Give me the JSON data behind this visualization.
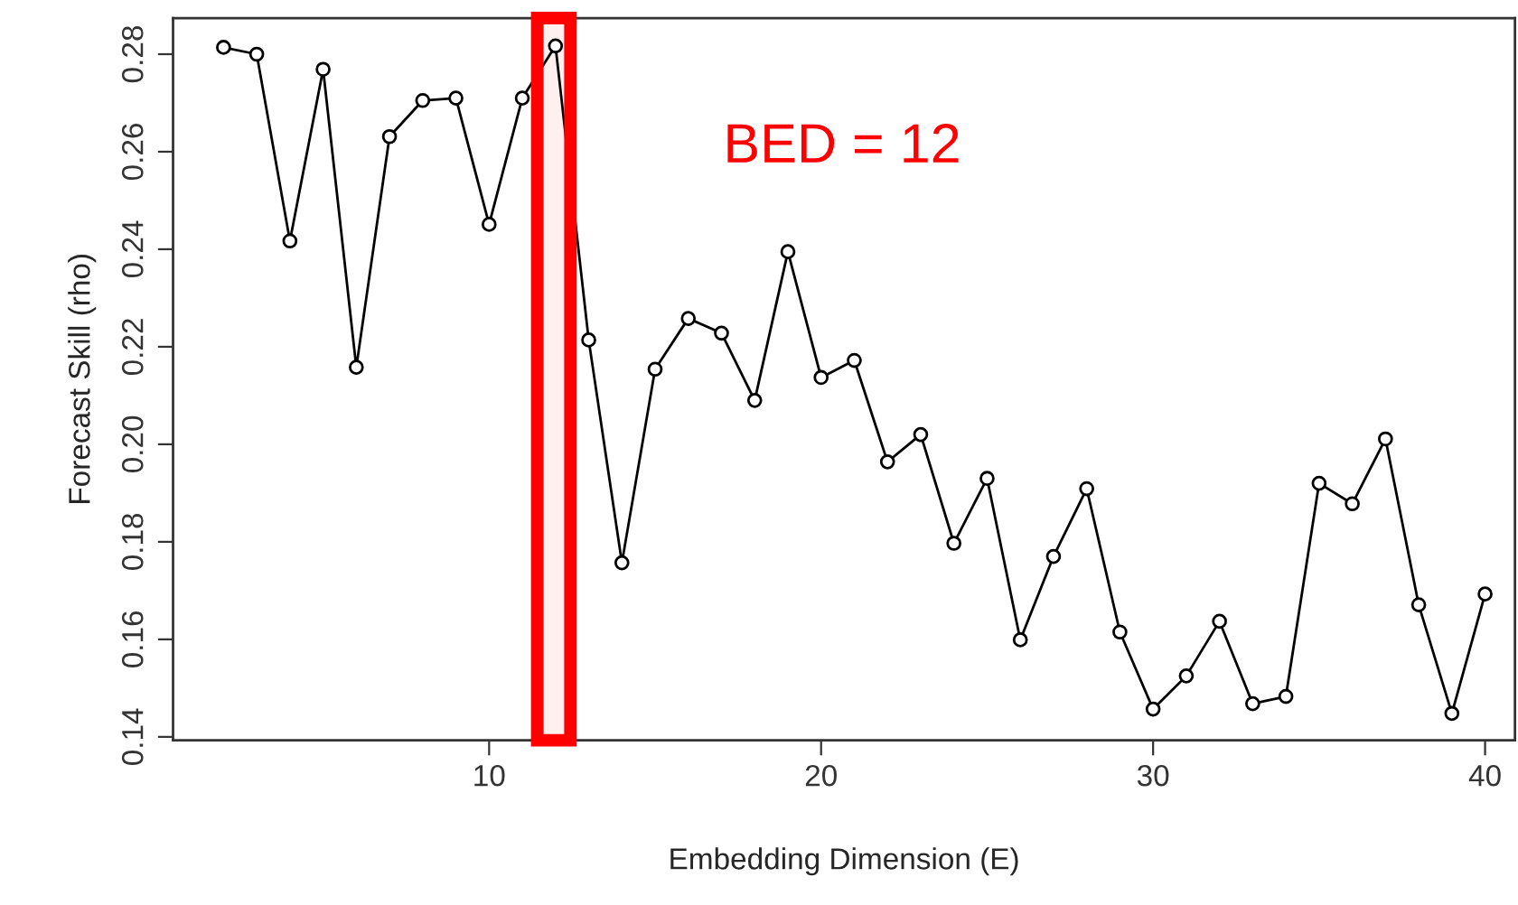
{
  "chart_data": {
    "type": "line",
    "xlabel": "Embedding Dimension (E)",
    "ylabel": "Forecast Skill (rho)",
    "x": [
      2,
      3,
      4,
      5,
      6,
      7,
      8,
      9,
      10,
      11,
      12,
      13,
      14,
      15,
      16,
      17,
      18,
      19,
      20,
      21,
      22,
      23,
      24,
      25,
      26,
      27,
      28,
      29,
      30,
      31,
      32,
      33,
      34,
      35,
      36,
      37,
      38,
      39,
      40
    ],
    "series": [
      {
        "color": "#000000",
        "values": [
          0.2814,
          0.28,
          0.2417,
          0.2769,
          0.2158,
          0.2631,
          0.2705,
          0.271,
          0.2451,
          0.271,
          0.2817,
          0.2214,
          0.1757,
          0.2154,
          0.2258,
          0.2228,
          0.209,
          0.2395,
          0.2137,
          0.2172,
          0.1964,
          0.202,
          0.1797,
          0.193,
          0.1599,
          0.177,
          0.1909,
          0.1615,
          0.1457,
          0.1525,
          0.1637,
          0.1468,
          0.1483,
          0.192,
          0.1878,
          0.2011,
          0.1671,
          0.1448,
          0.1693
        ]
      }
    ],
    "xlim": [
      0.48,
      40.9
    ],
    "ylim": [
      0.1393,
      0.2874
    ],
    "xticks": [
      10,
      20,
      30,
      40
    ],
    "yticks": [
      0.14,
      0.16,
      0.18,
      {
        "value": 0.2,
        "label": "0.20"
      },
      0.22,
      0.24,
      0.26,
      0.28
    ],
    "marker": "circle",
    "line_style": "solid",
    "grid": false,
    "legend": false,
    "bands": [
      {
        "axis": "x",
        "from": 11.45,
        "to": 12.45,
        "color": "#ff0000"
      }
    ],
    "annotations": [
      "BED = 12"
    ]
  }
}
